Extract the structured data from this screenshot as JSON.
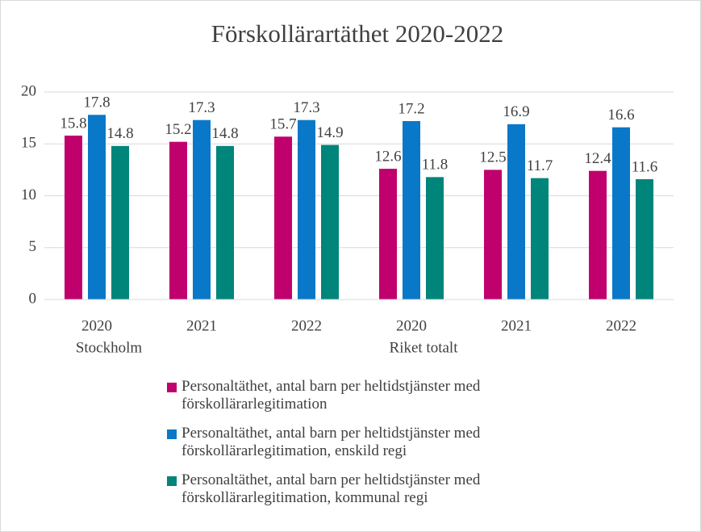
{
  "chart_data": {
    "type": "bar",
    "title": "Förskollärartäthet 2020-2022",
    "groups": [
      {
        "name": "Stockholm",
        "categories": [
          "2020",
          "2021",
          "2022"
        ]
      },
      {
        "name": "Riket totalt",
        "categories": [
          "2020",
          "2021",
          "2022"
        ]
      }
    ],
    "series": [
      {
        "name": "Personaltäthet, antal barn per heltidstjänster med förskollärarlegitimation",
        "color": "#c0006c",
        "values": [
          15.8,
          15.2,
          15.7,
          12.6,
          12.5,
          12.4
        ]
      },
      {
        "name": "Personaltäthet, antal barn per heltidstjänster med förskollärarlegitimation, enskild regi",
        "color": "#0a78c8",
        "values": [
          17.8,
          17.3,
          17.3,
          17.2,
          16.9,
          16.6
        ]
      },
      {
        "name": "Personaltäthet, antal barn per heltidstjänster med förskollärarlegitimation, kommunal regi",
        "color": "#00857a",
        "values": [
          14.8,
          14.8,
          14.9,
          11.8,
          11.7,
          11.6
        ]
      }
    ],
    "ylim": [
      0,
      20
    ],
    "yticks": [
      0,
      5,
      10,
      15,
      20
    ],
    "grid": true,
    "legend": "bottom"
  }
}
